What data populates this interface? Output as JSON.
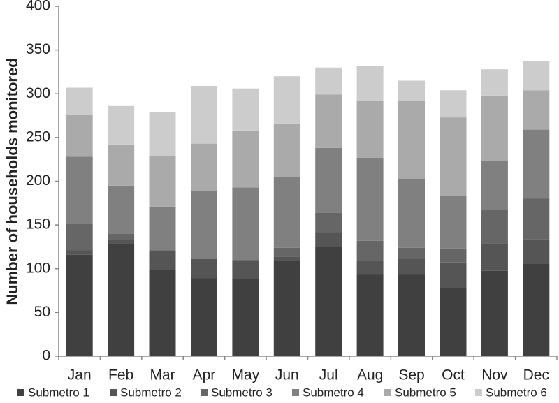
{
  "chart_data": {
    "type": "bar",
    "stacked": true,
    "title": "",
    "xlabel": "",
    "ylabel": "Number of households monitored",
    "ylim": [
      0,
      400
    ],
    "yticks": [
      0,
      50,
      100,
      150,
      200,
      250,
      300,
      350,
      400
    ],
    "grid": false,
    "legend_position": "bottom",
    "categories": [
      "Jan",
      "Feb",
      "Mar",
      "Apr",
      "May",
      "Jun",
      "Jul",
      "Aug",
      "Sep",
      "Oct",
      "Nov",
      "Dec"
    ],
    "series": [
      {
        "name": "Submetro 1",
        "color": "#404040",
        "values": [
          116,
          129,
          99,
          89,
          88,
          109,
          125,
          93,
          93,
          78,
          98,
          106
        ]
      },
      {
        "name": "Submetro 2",
        "color": "#555555",
        "values": [
          5,
          4,
          22,
          22,
          22,
          5,
          17,
          17,
          18,
          29,
          31,
          28
        ]
      },
      {
        "name": "Submetro 3",
        "color": "#666666",
        "values": [
          30,
          7,
          0,
          0,
          0,
          10,
          22,
          22,
          13,
          16,
          38,
          46
        ]
      },
      {
        "name": "Submetro 4",
        "color": "#808080",
        "values": [
          77,
          55,
          50,
          78,
          83,
          81,
          74,
          95,
          78,
          60,
          56,
          79
        ]
      },
      {
        "name": "Submetro 5",
        "color": "#aaaaaa",
        "values": [
          48,
          47,
          58,
          54,
          65,
          61,
          61,
          65,
          90,
          90,
          75,
          45
        ]
      },
      {
        "name": "Submetro 6",
        "color": "#cccccc",
        "values": [
          31,
          44,
          50,
          66,
          48,
          54,
          31,
          40,
          23,
          31,
          30,
          33
        ]
      }
    ]
  }
}
